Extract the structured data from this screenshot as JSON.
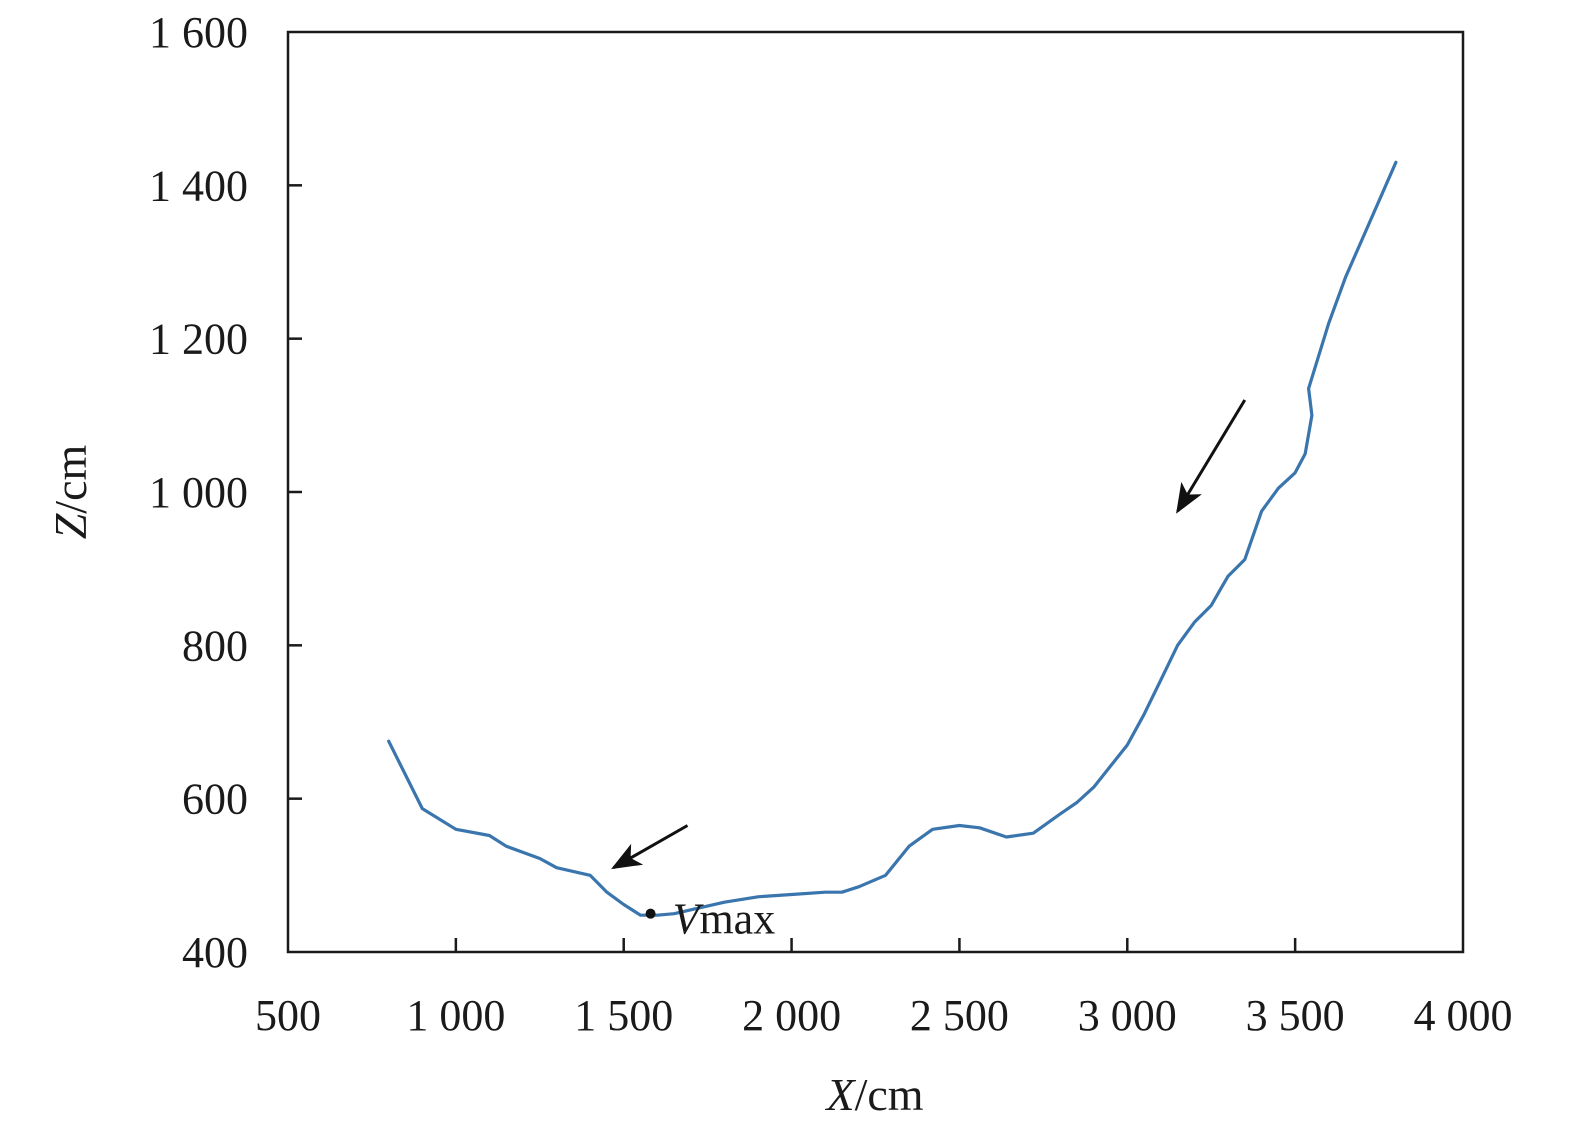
{
  "chart_data": {
    "type": "line",
    "title": "",
    "xlabel": {
      "var": "X",
      "unit": "/cm"
    },
    "ylabel": {
      "var": "Z",
      "unit": "/cm"
    },
    "xlim": [
      500,
      4000
    ],
    "ylim": [
      400,
      1600
    ],
    "xticks": [
      500,
      1000,
      1500,
      2000,
      2500,
      3000,
      3500,
      4000
    ],
    "xtick_labels": [
      "500",
      "1 000",
      "1 500",
      "2 000",
      "2 500",
      "3 000",
      "3 500",
      "4 000"
    ],
    "yticks": [
      400,
      600,
      800,
      1000,
      1200,
      1400,
      1600
    ],
    "ytick_labels": [
      "400",
      "600",
      "800",
      "1 000",
      "1 200",
      "1 400",
      "1 600"
    ],
    "grid": false,
    "line_color": "#3a75ad",
    "series": [
      {
        "x": [
          800,
          900,
          1000,
          1100,
          1150,
          1250,
          1300,
          1400,
          1450,
          1500,
          1550,
          1600,
          1650,
          1700,
          1800,
          1900,
          2000,
          2100,
          2150,
          2200,
          2280,
          2350,
          2420,
          2500,
          2560,
          2640,
          2720,
          2800,
          2850,
          2900,
          3000,
          3050,
          3100,
          3150,
          3200,
          3250,
          3280,
          3300,
          3350,
          3400,
          3450,
          3500,
          3530,
          3550,
          3540,
          3600,
          3650,
          3700,
          3800
        ],
        "y": [
          675,
          587,
          560,
          552,
          538,
          522,
          510,
          500,
          478,
          462,
          448,
          448,
          450,
          455,
          465,
          472,
          475,
          478,
          478,
          485,
          500,
          538,
          560,
          565,
          562,
          550,
          555,
          580,
          595,
          615,
          670,
          710,
          755,
          800,
          830,
          852,
          875,
          890,
          912,
          975,
          1005,
          1025,
          1050,
          1100,
          1135,
          1220,
          1280,
          1330,
          1430
        ]
      }
    ],
    "annotations": [
      {
        "type": "point",
        "x": 1580,
        "y": 450,
        "label_var": "V",
        "label_sub": "max"
      },
      {
        "type": "arrow",
        "from": [
          3350,
          1120
        ],
        "to": [
          3150,
          975
        ]
      },
      {
        "type": "arrow",
        "from": [
          1690,
          565
        ],
        "to": [
          1470,
          510
        ]
      }
    ]
  }
}
